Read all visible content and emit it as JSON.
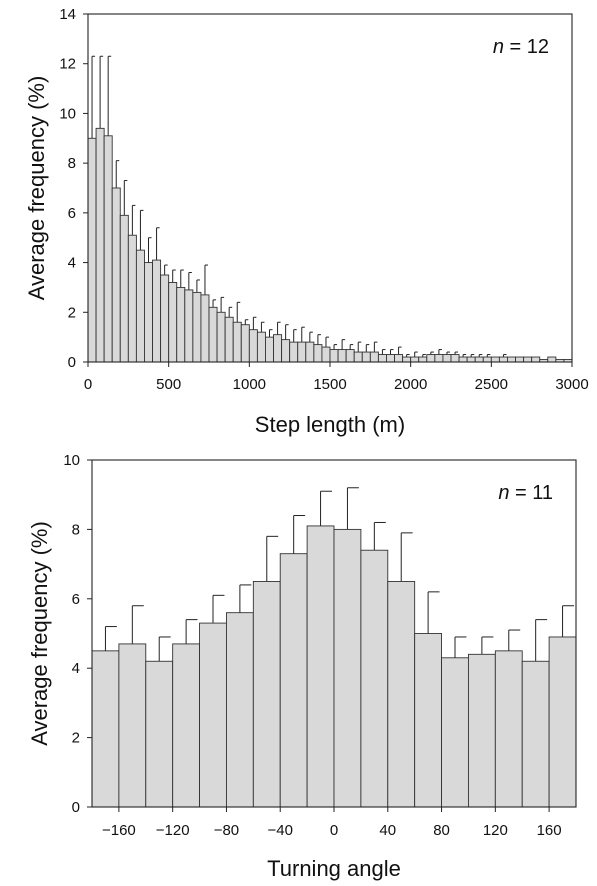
{
  "chart_data": [
    {
      "type": "bar",
      "annotation": {
        "italic": "n",
        "rest": " = 12"
      },
      "xlabel": "Step length (m)",
      "ylabel": "Average frequency (%)",
      "xlim": [
        0,
        3000
      ],
      "ylim": [
        0,
        14
      ],
      "xticks": [
        0,
        500,
        1000,
        1500,
        2000,
        2500,
        3000
      ],
      "yticks": [
        0,
        2,
        4,
        6,
        8,
        10,
        12,
        14
      ],
      "bin_width": 50,
      "values": [
        9.0,
        9.4,
        9.1,
        7.0,
        5.9,
        5.1,
        4.5,
        4.0,
        4.1,
        3.5,
        3.2,
        3.0,
        2.9,
        2.8,
        2.7,
        2.2,
        2.0,
        1.8,
        1.6,
        1.5,
        1.3,
        1.2,
        1.0,
        1.1,
        0.9,
        0.8,
        0.8,
        0.8,
        0.7,
        0.6,
        0.5,
        0.5,
        0.5,
        0.4,
        0.4,
        0.4,
        0.3,
        0.3,
        0.3,
        0.2,
        0.2,
        0.2,
        0.3,
        0.3,
        0.3,
        0.3,
        0.2,
        0.2,
        0.2,
        0.2,
        0.2,
        0.2,
        0.2,
        0.2,
        0.2,
        0.2,
        0.1,
        0.2,
        0.1,
        0.1
      ],
      "errors": [
        3.3,
        2.9,
        3.2,
        1.1,
        1.4,
        1.2,
        1.6,
        1.0,
        1.3,
        0.4,
        0.5,
        0.7,
        0.7,
        0.5,
        1.2,
        0.3,
        0.6,
        0.4,
        0.8,
        0.2,
        0.5,
        0.4,
        0.3,
        0.5,
        0.6,
        0.5,
        0.6,
        0.4,
        0.4,
        0.4,
        0.2,
        0.4,
        0.2,
        0.4,
        0.3,
        0.4,
        0.2,
        0.2,
        0.3,
        0.1,
        0.2,
        0.1,
        0.1,
        0.2,
        0.1,
        0.1,
        0.1,
        0.1,
        0.1,
        0.1,
        0.0,
        0.1,
        0.0,
        0.0,
        0.0,
        0.0,
        0.0,
        0.0,
        0.0,
        0.0
      ]
    },
    {
      "type": "bar",
      "annotation": {
        "italic": "n",
        "rest": " = 11"
      },
      "xlabel": "Turning angle",
      "ylabel": "Average frequency (%)",
      "xlim": [
        -180,
        180
      ],
      "ylim": [
        0,
        10
      ],
      "xticks": [
        -160,
        -120,
        -80,
        -40,
        0,
        40,
        80,
        120,
        160
      ],
      "xtick_labels": [
        "−160",
        "−120",
        "−80",
        "−40",
        "0",
        "40",
        "80",
        "120",
        "160"
      ],
      "yticks": [
        0,
        2,
        4,
        6,
        8,
        10
      ],
      "bin_width": 20,
      "values": [
        4.5,
        4.7,
        4.2,
        4.7,
        5.3,
        5.6,
        6.5,
        7.3,
        8.1,
        8.0,
        7.4,
        6.5,
        5.0,
        4.3,
        4.4,
        4.5,
        4.2,
        4.9
      ],
      "errors": [
        0.7,
        1.1,
        0.7,
        0.7,
        0.8,
        0.8,
        1.3,
        1.1,
        1.0,
        1.2,
        0.8,
        1.4,
        1.2,
        0.6,
        0.5,
        0.6,
        1.2,
        0.9
      ]
    }
  ]
}
